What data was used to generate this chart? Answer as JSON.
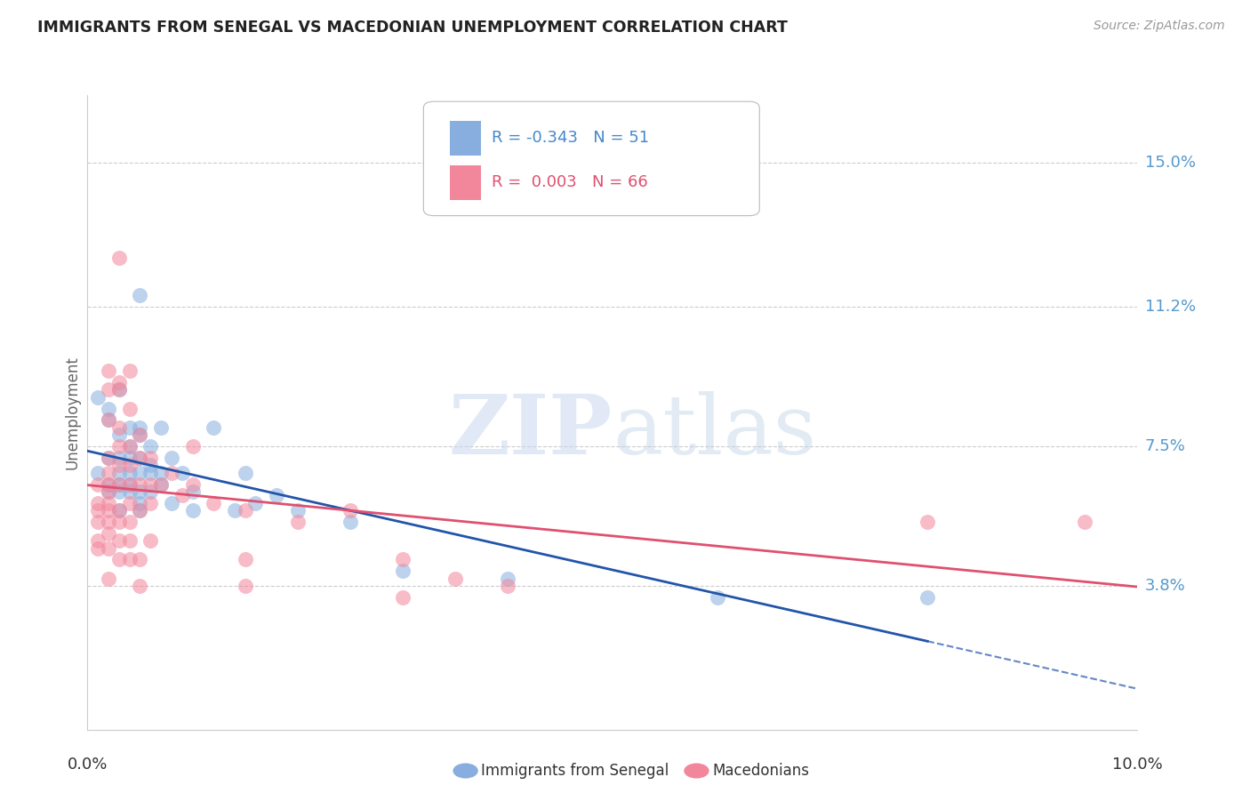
{
  "title": "IMMIGRANTS FROM SENEGAL VS MACEDONIAN UNEMPLOYMENT CORRELATION CHART",
  "source": "Source: ZipAtlas.com",
  "ylabel": "Unemployment",
  "ytick_labels": [
    "15.0%",
    "11.2%",
    "7.5%",
    "3.8%"
  ],
  "ytick_values": [
    0.15,
    0.112,
    0.075,
    0.038
  ],
  "xlim": [
    0.0,
    0.1
  ],
  "ylim": [
    0.0,
    0.168
  ],
  "legend_blue_r": "-0.343",
  "legend_blue_n": "51",
  "legend_pink_r": "0.003",
  "legend_pink_n": "66",
  "legend_blue_label": "Immigrants from Senegal",
  "legend_pink_label": "Macedonians",
  "blue_color": "#87AEDE",
  "pink_color": "#F2869B",
  "blue_line_color": "#2255AA",
  "pink_line_color": "#E05070",
  "watermark_zip": "ZIP",
  "watermark_atlas": "atlas",
  "blue_points": [
    [
      0.001,
      0.068
    ],
    [
      0.001,
      0.088
    ],
    [
      0.002,
      0.085
    ],
    [
      0.002,
      0.082
    ],
    [
      0.002,
      0.072
    ],
    [
      0.002,
      0.065
    ],
    [
      0.002,
      0.063
    ],
    [
      0.003,
      0.09
    ],
    [
      0.003,
      0.078
    ],
    [
      0.003,
      0.072
    ],
    [
      0.003,
      0.068
    ],
    [
      0.003,
      0.065
    ],
    [
      0.003,
      0.063
    ],
    [
      0.003,
      0.058
    ],
    [
      0.004,
      0.08
    ],
    [
      0.004,
      0.075
    ],
    [
      0.004,
      0.072
    ],
    [
      0.004,
      0.068
    ],
    [
      0.004,
      0.065
    ],
    [
      0.004,
      0.063
    ],
    [
      0.005,
      0.115
    ],
    [
      0.005,
      0.08
    ],
    [
      0.005,
      0.078
    ],
    [
      0.005,
      0.072
    ],
    [
      0.005,
      0.068
    ],
    [
      0.005,
      0.063
    ],
    [
      0.005,
      0.06
    ],
    [
      0.005,
      0.058
    ],
    [
      0.006,
      0.075
    ],
    [
      0.006,
      0.07
    ],
    [
      0.006,
      0.068
    ],
    [
      0.006,
      0.063
    ],
    [
      0.007,
      0.08
    ],
    [
      0.007,
      0.068
    ],
    [
      0.007,
      0.065
    ],
    [
      0.008,
      0.072
    ],
    [
      0.008,
      0.06
    ],
    [
      0.009,
      0.068
    ],
    [
      0.01,
      0.063
    ],
    [
      0.01,
      0.058
    ],
    [
      0.012,
      0.08
    ],
    [
      0.014,
      0.058
    ],
    [
      0.015,
      0.068
    ],
    [
      0.016,
      0.06
    ],
    [
      0.018,
      0.062
    ],
    [
      0.02,
      0.058
    ],
    [
      0.025,
      0.055
    ],
    [
      0.03,
      0.042
    ],
    [
      0.04,
      0.04
    ],
    [
      0.06,
      0.035
    ],
    [
      0.08,
      0.035
    ]
  ],
  "pink_points": [
    [
      0.001,
      0.065
    ],
    [
      0.001,
      0.06
    ],
    [
      0.001,
      0.058
    ],
    [
      0.001,
      0.055
    ],
    [
      0.001,
      0.05
    ],
    [
      0.001,
      0.048
    ],
    [
      0.002,
      0.095
    ],
    [
      0.002,
      0.09
    ],
    [
      0.002,
      0.082
    ],
    [
      0.002,
      0.072
    ],
    [
      0.002,
      0.068
    ],
    [
      0.002,
      0.065
    ],
    [
      0.002,
      0.063
    ],
    [
      0.002,
      0.06
    ],
    [
      0.002,
      0.058
    ],
    [
      0.002,
      0.055
    ],
    [
      0.002,
      0.052
    ],
    [
      0.002,
      0.048
    ],
    [
      0.002,
      0.04
    ],
    [
      0.003,
      0.125
    ],
    [
      0.003,
      0.092
    ],
    [
      0.003,
      0.09
    ],
    [
      0.003,
      0.08
    ],
    [
      0.003,
      0.075
    ],
    [
      0.003,
      0.07
    ],
    [
      0.003,
      0.065
    ],
    [
      0.003,
      0.058
    ],
    [
      0.003,
      0.055
    ],
    [
      0.003,
      0.05
    ],
    [
      0.003,
      0.045
    ],
    [
      0.004,
      0.095
    ],
    [
      0.004,
      0.085
    ],
    [
      0.004,
      0.075
    ],
    [
      0.004,
      0.07
    ],
    [
      0.004,
      0.065
    ],
    [
      0.004,
      0.06
    ],
    [
      0.004,
      0.055
    ],
    [
      0.004,
      0.05
    ],
    [
      0.004,
      0.045
    ],
    [
      0.005,
      0.078
    ],
    [
      0.005,
      0.072
    ],
    [
      0.005,
      0.065
    ],
    [
      0.005,
      0.058
    ],
    [
      0.005,
      0.045
    ],
    [
      0.005,
      0.038
    ],
    [
      0.006,
      0.072
    ],
    [
      0.006,
      0.065
    ],
    [
      0.006,
      0.06
    ],
    [
      0.006,
      0.05
    ],
    [
      0.007,
      0.065
    ],
    [
      0.008,
      0.068
    ],
    [
      0.009,
      0.062
    ],
    [
      0.01,
      0.075
    ],
    [
      0.01,
      0.065
    ],
    [
      0.012,
      0.06
    ],
    [
      0.015,
      0.058
    ],
    [
      0.015,
      0.045
    ],
    [
      0.015,
      0.038
    ],
    [
      0.02,
      0.055
    ],
    [
      0.025,
      0.058
    ],
    [
      0.03,
      0.045
    ],
    [
      0.03,
      0.035
    ],
    [
      0.035,
      0.04
    ],
    [
      0.04,
      0.038
    ],
    [
      0.08,
      0.055
    ],
    [
      0.095,
      0.055
    ]
  ]
}
